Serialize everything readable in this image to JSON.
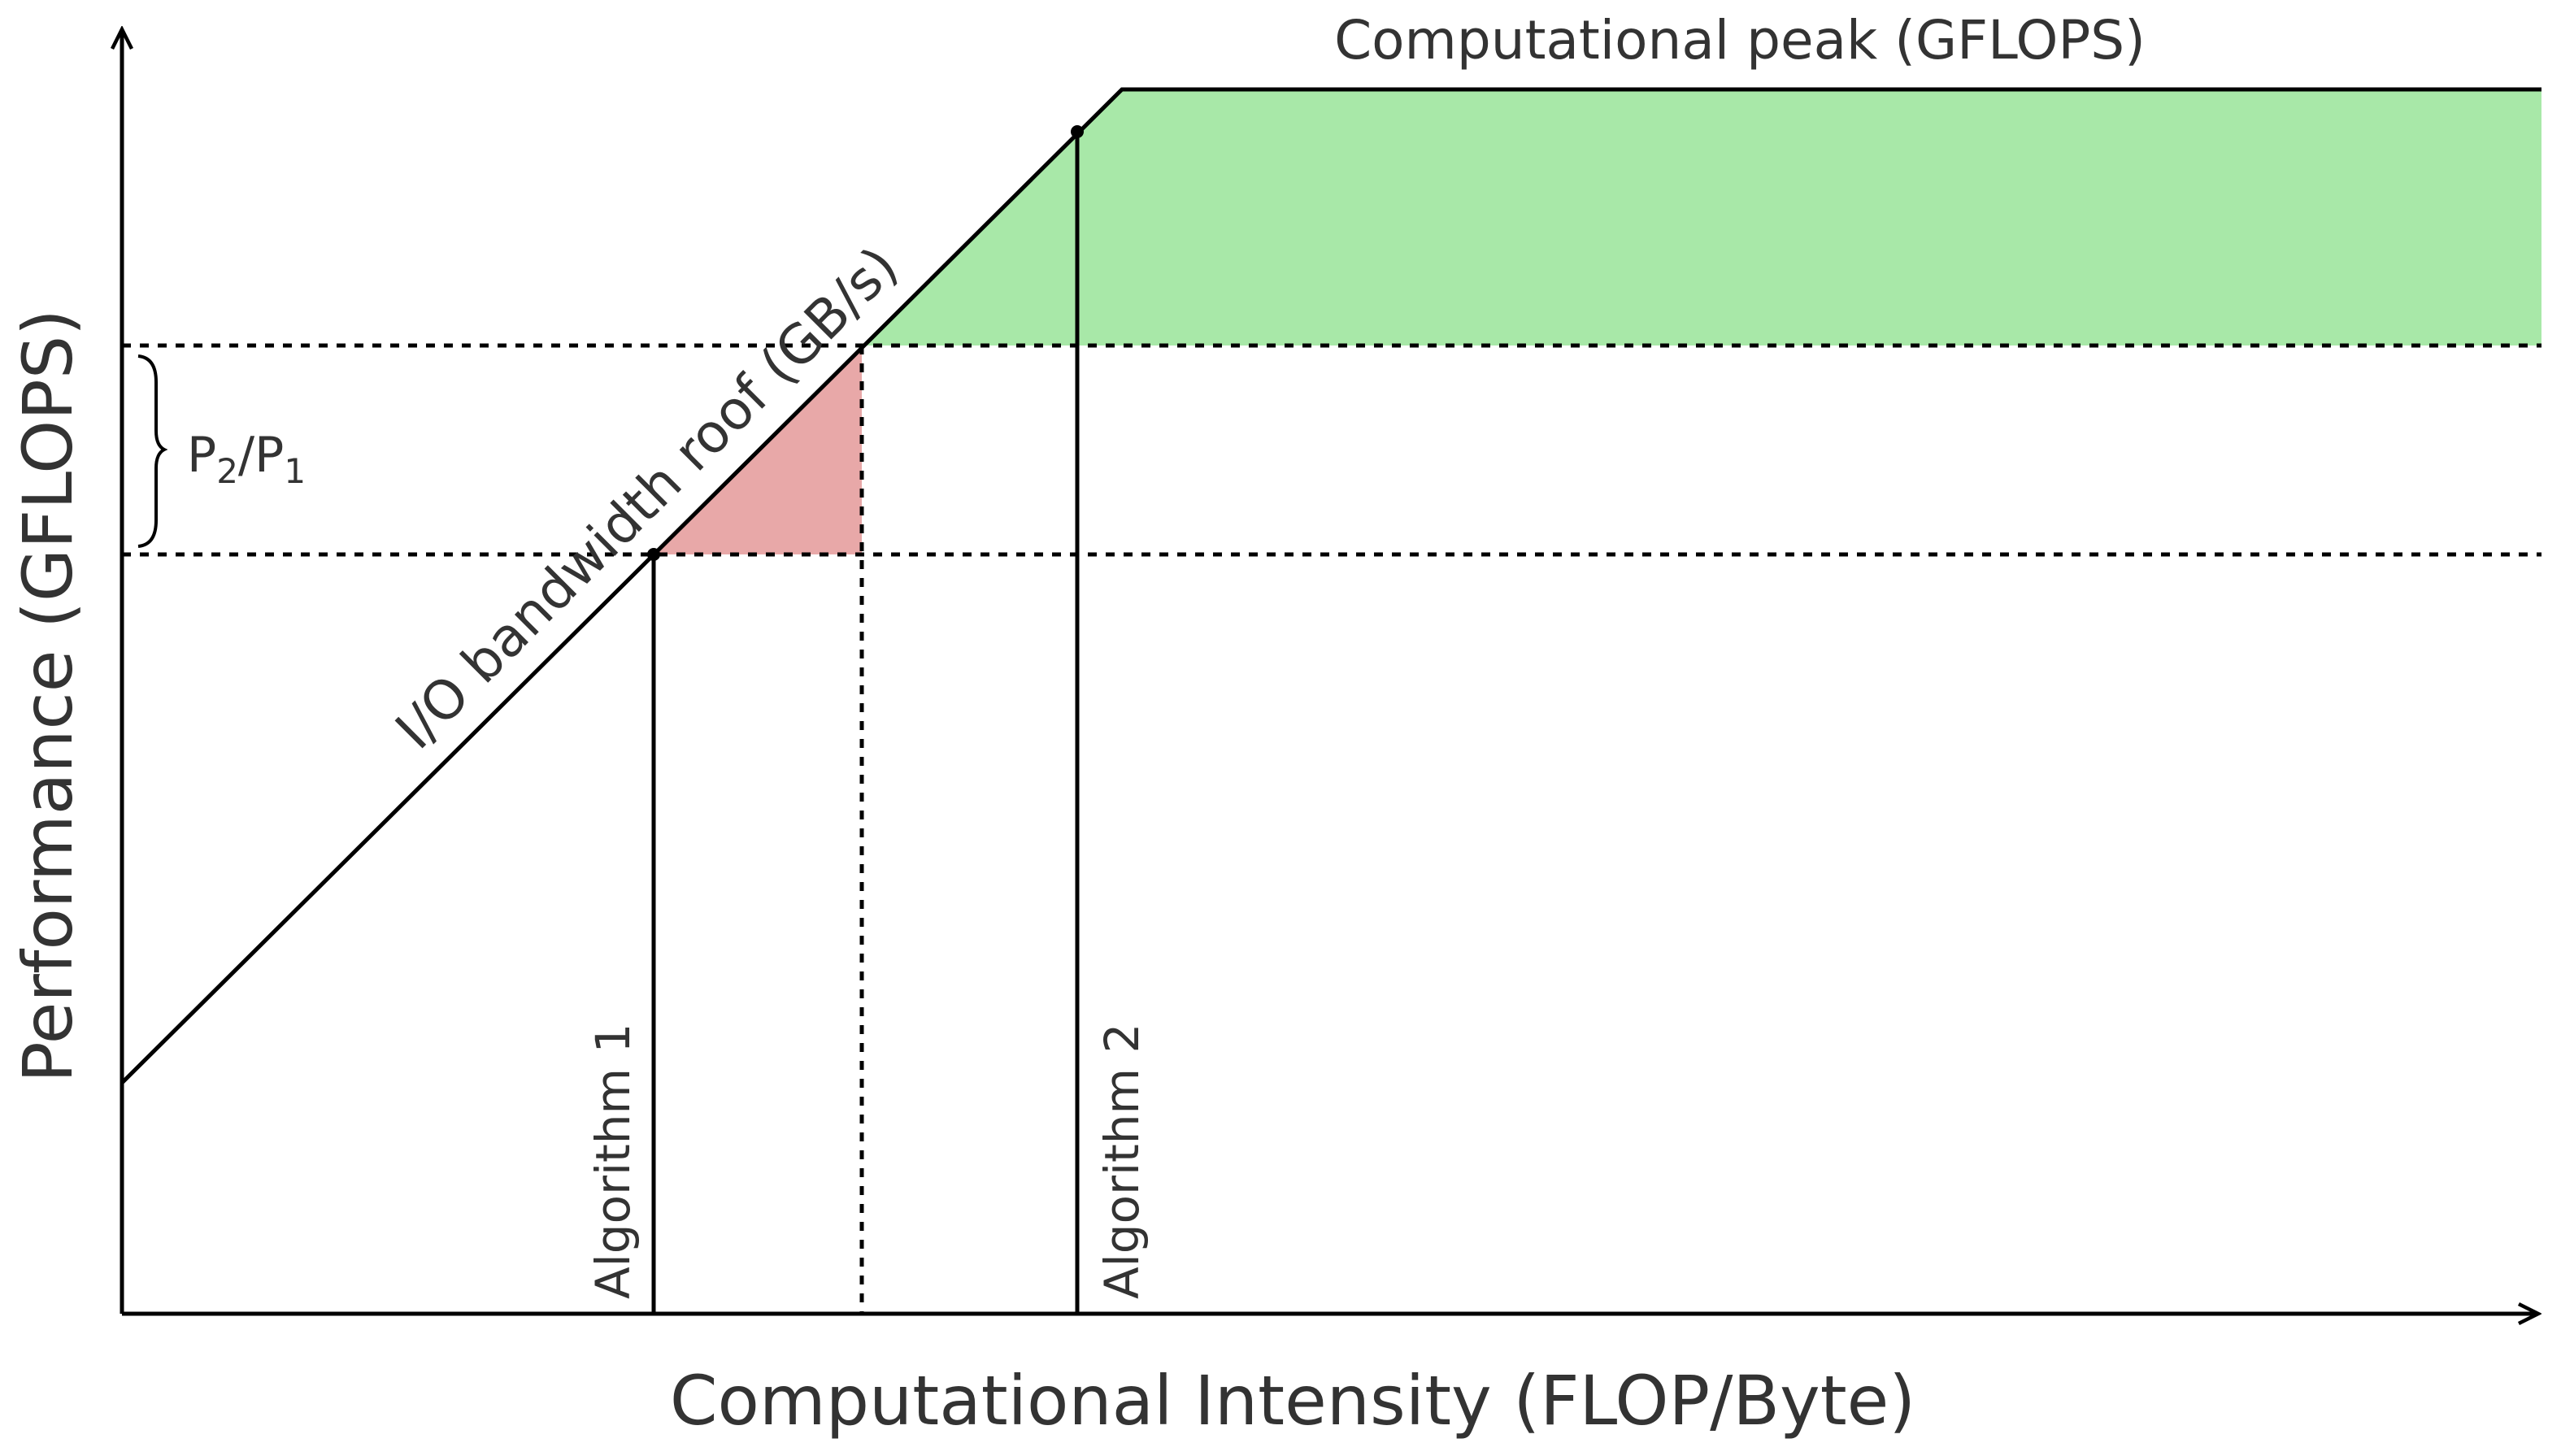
{
  "diagram": {
    "title": "",
    "xlabel": "Computational Intensity (FLOP/Byte)",
    "ylabel": "Performance (GFLOPS)",
    "peak_label": "Computational peak (GFLOPS)",
    "roof_label": "I/O bandwidth roof (GB/s)",
    "algorithm_1_label": "Algorithm 1",
    "algorithm_2_label": "Algorithm 2",
    "ratio_label": {
      "p2": "P",
      "p2_sub": "2",
      "slash": "/",
      "p1": "P",
      "p1_sub": "1"
    },
    "colors": {
      "line": "#000000",
      "text": "#333333",
      "improvement_region": "#a8e8a8",
      "bandwidth_gap_region": "#e8a8a8"
    }
  }
}
